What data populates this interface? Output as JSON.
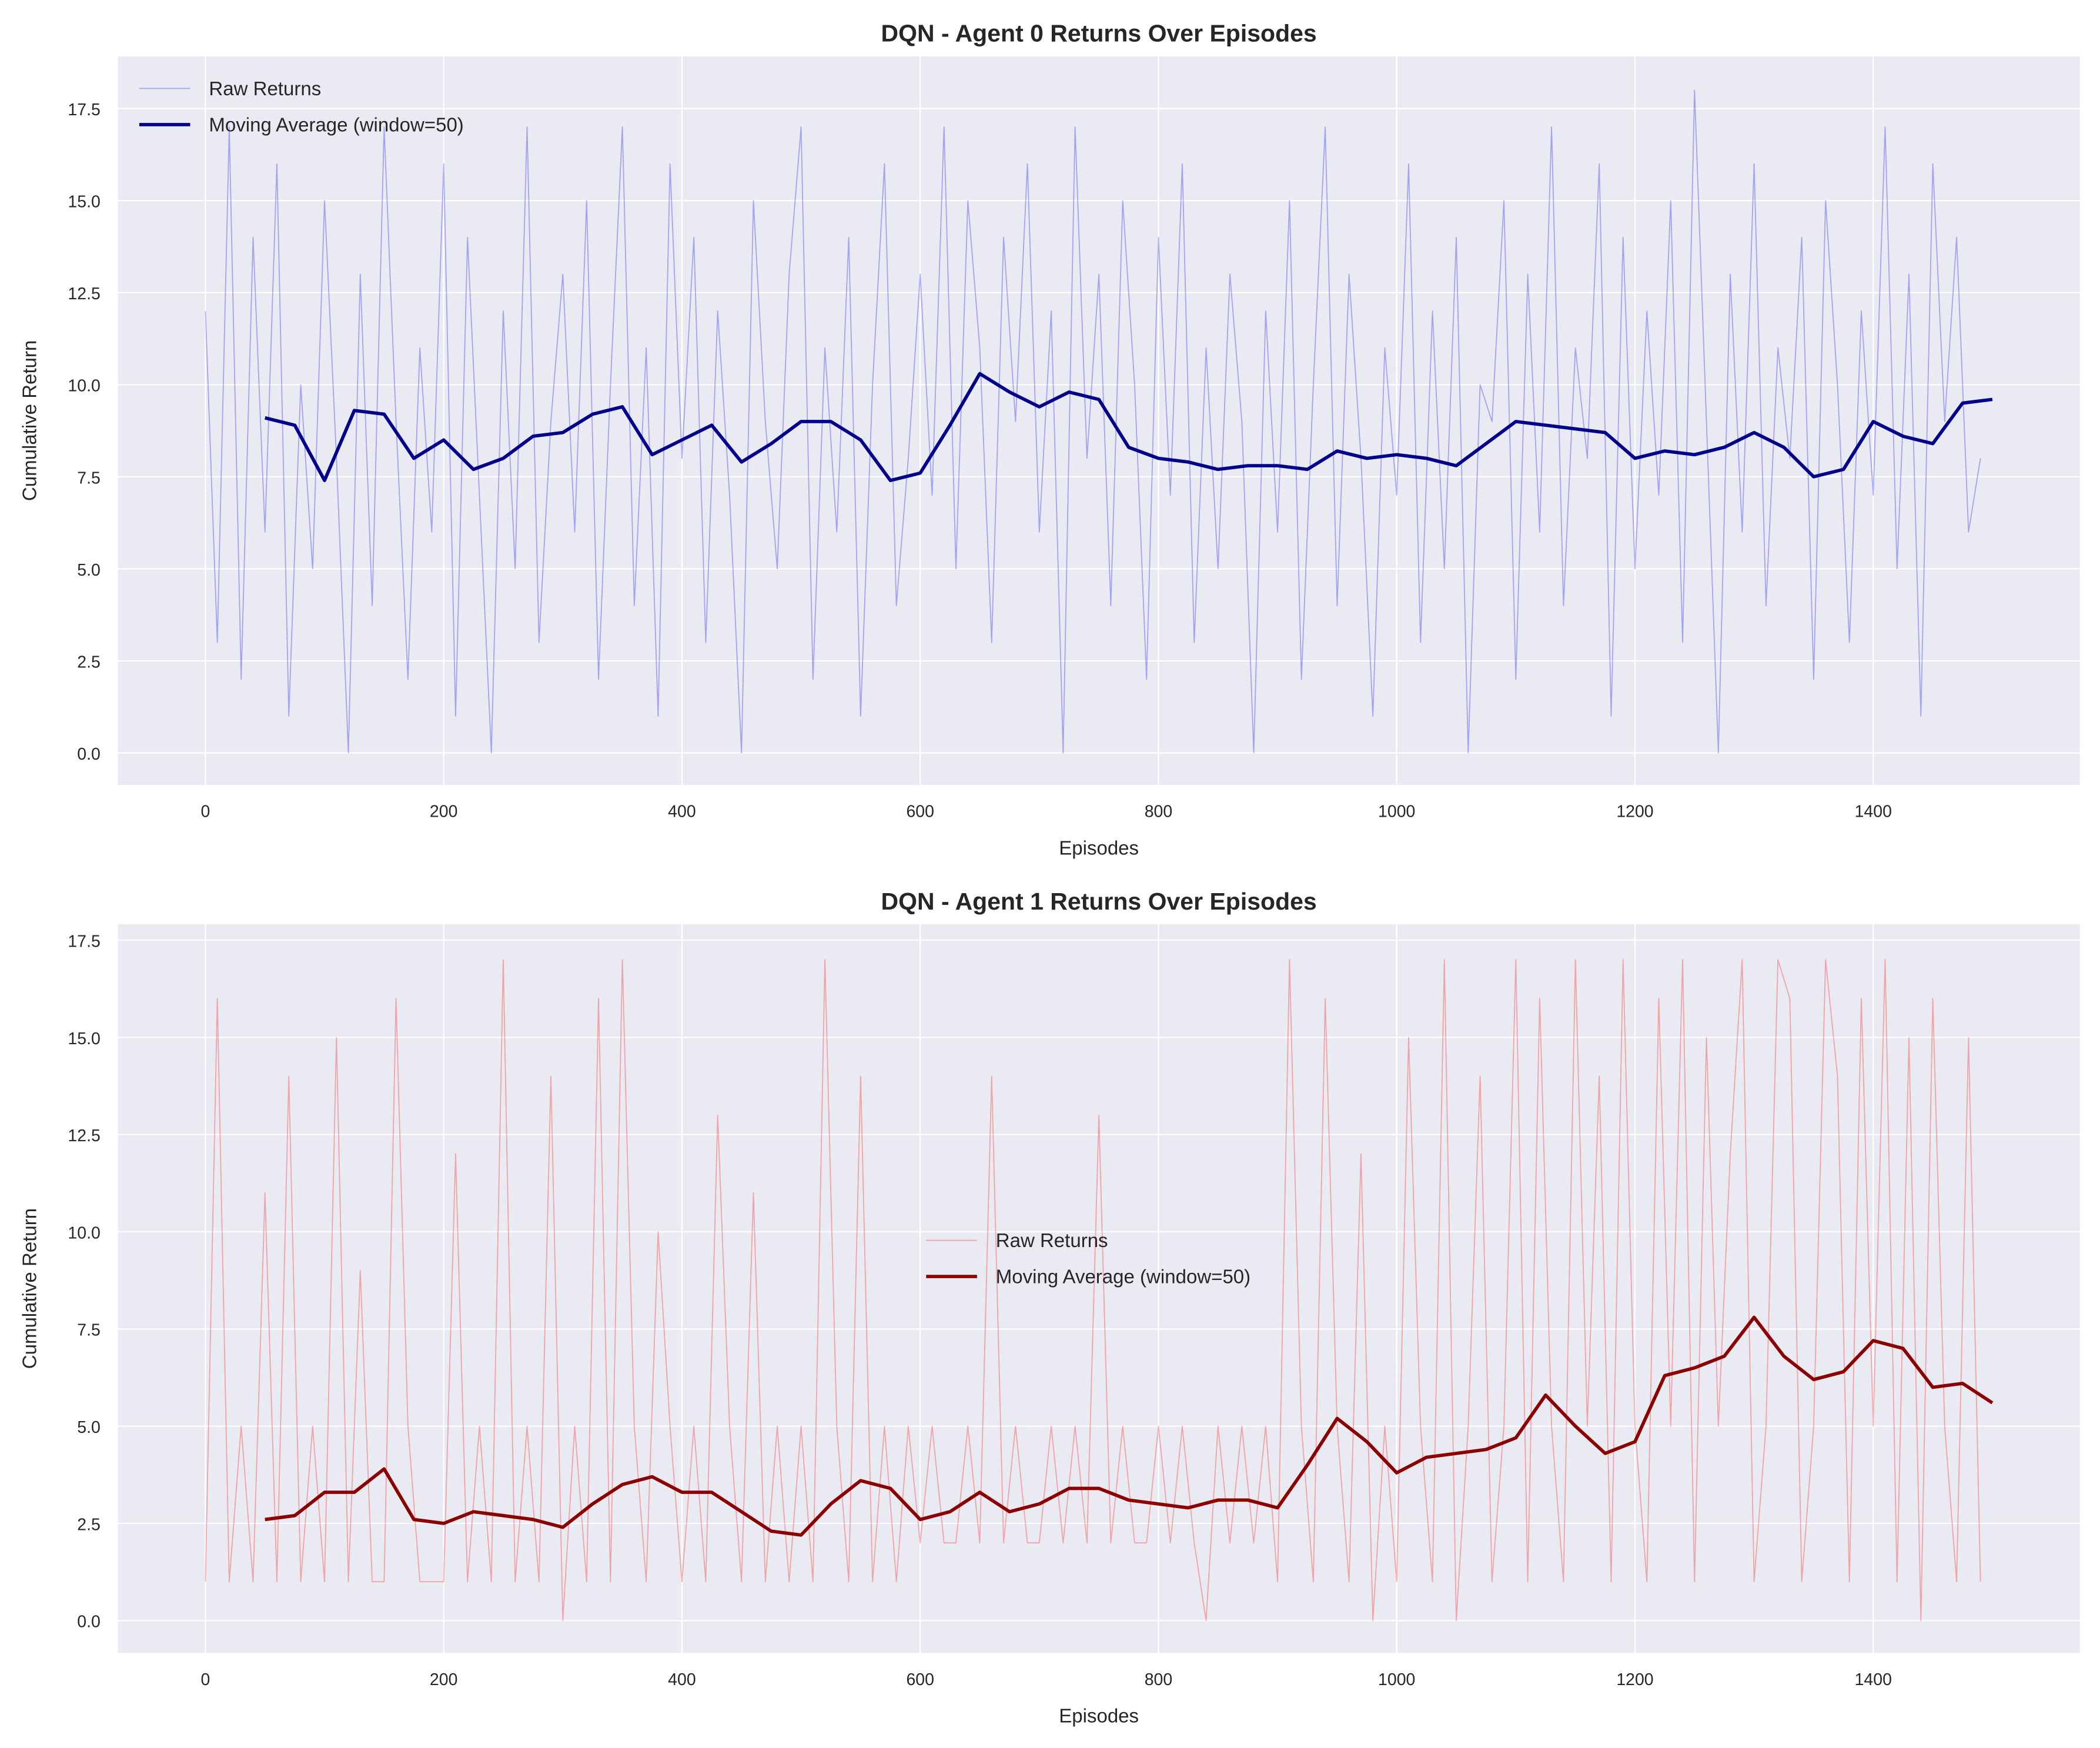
{
  "chart_data": [
    {
      "type": "line",
      "title": "DQN - Agent 0 Returns Over Episodes",
      "xlabel": "Episodes",
      "ylabel": "Cumulative Return",
      "xlim": [
        -73.5,
        1573.5
      ],
      "ylim": [
        -0.87,
        18.92
      ],
      "xticks": [
        0,
        200,
        400,
        600,
        800,
        1000,
        1200,
        1400
      ],
      "yticks": [
        {
          "value": 0,
          "label": "0.0"
        },
        {
          "value": 2.5,
          "label": "2.5"
        },
        {
          "value": 5,
          "label": "5.0"
        },
        {
          "value": 7.5,
          "label": "7.5"
        },
        {
          "value": 10,
          "label": "10.0"
        },
        {
          "value": 12.5,
          "label": "12.5"
        },
        {
          "value": 15,
          "label": "15.0"
        },
        {
          "value": 17.5,
          "label": "17.5"
        }
      ],
      "grid": true,
      "legend": "upper-left",
      "series": [
        {
          "name": "Raw Returns",
          "color": "#0000ff",
          "opacity": 0.3,
          "width": 0.8,
          "x": [
            0,
            10,
            20,
            30,
            40,
            50,
            60,
            70,
            80,
            90,
            100,
            110,
            120,
            130,
            140,
            150,
            160,
            170,
            180,
            190,
            200,
            210,
            220,
            230,
            240,
            250,
            260,
            270,
            280,
            290,
            300,
            310,
            320,
            330,
            340,
            350,
            360,
            370,
            380,
            390,
            400,
            410,
            420,
            430,
            440,
            450,
            460,
            470,
            480,
            490,
            500,
            510,
            520,
            530,
            540,
            550,
            560,
            570,
            580,
            590,
            600,
            610,
            620,
            630,
            640,
            650,
            660,
            670,
            680,
            690,
            700,
            710,
            720,
            730,
            740,
            750,
            760,
            770,
            780,
            790,
            800,
            810,
            820,
            830,
            840,
            850,
            860,
            870,
            880,
            890,
            900,
            910,
            920,
            930,
            940,
            950,
            960,
            970,
            980,
            990,
            1000,
            1010,
            1020,
            1030,
            1040,
            1050,
            1060,
            1070,
            1080,
            1090,
            1100,
            1110,
            1120,
            1130,
            1140,
            1150,
            1160,
            1170,
            1180,
            1190,
            1200,
            1210,
            1220,
            1230,
            1240,
            1250,
            1260,
            1270,
            1280,
            1290,
            1300,
            1310,
            1320,
            1330,
            1340,
            1350,
            1360,
            1370,
            1380,
            1390,
            1400,
            1410,
            1420,
            1430,
            1440,
            1450,
            1460,
            1470,
            1480,
            1490
          ],
          "values": [
            12,
            3,
            17,
            2,
            14,
            6,
            16,
            1,
            10,
            5,
            15,
            8,
            0,
            13,
            4,
            17,
            9,
            2,
            11,
            6,
            16,
            1,
            14,
            7,
            0,
            12,
            5,
            17,
            3,
            9,
            13,
            6,
            15,
            2,
            10,
            17,
            4,
            11,
            1,
            16,
            8,
            14,
            3,
            12,
            7,
            0,
            15,
            9,
            5,
            13,
            17,
            2,
            11,
            6,
            14,
            1,
            10,
            16,
            4,
            8,
            13,
            7,
            17,
            5,
            15,
            11,
            3,
            14,
            9,
            16,
            6,
            12,
            0,
            17,
            8,
            13,
            4,
            15,
            10,
            2,
            14,
            7,
            16,
            3,
            11,
            5,
            13,
            9,
            0,
            12,
            6,
            15,
            2,
            10,
            17,
            4,
            13,
            8,
            1,
            11,
            7,
            16,
            3,
            12,
            5,
            14,
            0,
            10,
            9,
            15,
            2,
            13,
            6,
            17,
            4,
            11,
            8,
            16,
            1,
            14,
            5,
            12,
            7,
            15,
            3,
            18,
            9,
            0,
            13,
            6,
            16,
            4,
            11,
            8,
            14,
            2,
            15,
            10,
            3,
            12,
            7,
            17,
            5,
            13,
            1,
            16,
            9,
            14,
            6,
            8
          ]
        },
        {
          "name": "Moving Average (window=50)",
          "color": "#00008b",
          "opacity": 1,
          "width": 2.5,
          "x": [
            50,
            75,
            100,
            125,
            150,
            175,
            200,
            225,
            250,
            275,
            300,
            325,
            350,
            375,
            400,
            425,
            450,
            475,
            500,
            525,
            550,
            575,
            600,
            625,
            650,
            675,
            700,
            725,
            750,
            775,
            800,
            825,
            850,
            875,
            900,
            925,
            950,
            975,
            1000,
            1025,
            1050,
            1075,
            1100,
            1125,
            1150,
            1175,
            1200,
            1225,
            1250,
            1275,
            1300,
            1325,
            1350,
            1375,
            1400,
            1425,
            1450,
            1475,
            1500
          ],
          "values": [
            9.1,
            8.9,
            7.4,
            9.3,
            9.2,
            8.0,
            8.5,
            7.7,
            8.0,
            8.6,
            8.7,
            9.2,
            9.4,
            8.1,
            8.5,
            8.9,
            7.9,
            8.4,
            9.0,
            9.0,
            8.5,
            7.4,
            7.6,
            8.9,
            10.3,
            9.8,
            9.4,
            9.8,
            9.6,
            8.3,
            8.0,
            7.9,
            7.7,
            7.8,
            7.8,
            7.7,
            8.2,
            8.0,
            8.1,
            8.0,
            7.8,
            8.4,
            9.0,
            8.9,
            8.8,
            8.7,
            8.0,
            8.2,
            8.1,
            8.3,
            8.7,
            8.3,
            7.5,
            7.7,
            9.0,
            8.6,
            8.4,
            9.5,
            9.6
          ]
        }
      ]
    },
    {
      "type": "line",
      "title": "DQN - Agent 1 Returns Over Episodes",
      "xlabel": "Episodes",
      "ylabel": "Cumulative Return",
      "xlim": [
        -73.5,
        1573.5
      ],
      "ylim": [
        -0.83,
        17.91
      ],
      "xticks": [
        0,
        200,
        400,
        600,
        800,
        1000,
        1200,
        1400
      ],
      "yticks": [
        {
          "value": 0,
          "label": "0.0"
        },
        {
          "value": 2.5,
          "label": "2.5"
        },
        {
          "value": 5,
          "label": "5.0"
        },
        {
          "value": 7.5,
          "label": "7.5"
        },
        {
          "value": 10,
          "label": "10.0"
        },
        {
          "value": 12.5,
          "label": "12.5"
        },
        {
          "value": 15,
          "label": "15.0"
        },
        {
          "value": 17.5,
          "label": "17.5"
        }
      ],
      "grid": true,
      "legend": "center",
      "series": [
        {
          "name": "Raw Returns",
          "color": "#ff0000",
          "opacity": 0.3,
          "width": 0.8,
          "x": [
            0,
            10,
            20,
            30,
            40,
            50,
            60,
            70,
            80,
            90,
            100,
            110,
            120,
            130,
            140,
            150,
            160,
            170,
            180,
            190,
            200,
            210,
            220,
            230,
            240,
            250,
            260,
            270,
            280,
            290,
            300,
            310,
            320,
            330,
            340,
            350,
            360,
            370,
            380,
            390,
            400,
            410,
            420,
            430,
            440,
            450,
            460,
            470,
            480,
            490,
            500,
            510,
            520,
            530,
            540,
            550,
            560,
            570,
            580,
            590,
            600,
            610,
            620,
            630,
            640,
            650,
            660,
            670,
            680,
            690,
            700,
            710,
            720,
            730,
            740,
            750,
            760,
            770,
            780,
            790,
            800,
            810,
            820,
            830,
            840,
            850,
            860,
            870,
            880,
            890,
            900,
            910,
            920,
            930,
            940,
            950,
            960,
            970,
            980,
            990,
            1000,
            1010,
            1020,
            1030,
            1040,
            1050,
            1060,
            1070,
            1080,
            1090,
            1100,
            1110,
            1120,
            1130,
            1140,
            1150,
            1160,
            1170,
            1180,
            1190,
            1200,
            1210,
            1220,
            1230,
            1240,
            1250,
            1260,
            1270,
            1280,
            1290,
            1300,
            1310,
            1320,
            1330,
            1340,
            1350,
            1360,
            1370,
            1380,
            1390,
            1400,
            1410,
            1420,
            1430,
            1440,
            1450,
            1460,
            1470,
            1480,
            1490
          ],
          "values": [
            1,
            16,
            1,
            5,
            1,
            11,
            1,
            14,
            1,
            5,
            1,
            15,
            1,
            9,
            1,
            1,
            16,
            5,
            1,
            1,
            1,
            12,
            1,
            5,
            1,
            17,
            1,
            5,
            1,
            14,
            0,
            5,
            1,
            16,
            1,
            17,
            5,
            1,
            10,
            5,
            1,
            5,
            1,
            13,
            5,
            1,
            11,
            1,
            5,
            1,
            5,
            1,
            17,
            5,
            1,
            14,
            1,
            5,
            1,
            5,
            2,
            5,
            2,
            2,
            5,
            2,
            14,
            2,
            5,
            2,
            2,
            5,
            2,
            5,
            2,
            13,
            2,
            5,
            2,
            2,
            5,
            2,
            5,
            2,
            0,
            5,
            2,
            5,
            2,
            5,
            1,
            17,
            5,
            1,
            16,
            5,
            1,
            12,
            0,
            5,
            1,
            15,
            5,
            1,
            17,
            0,
            5,
            14,
            1,
            5,
            17,
            1,
            16,
            5,
            1,
            17,
            5,
            14,
            1,
            17,
            5,
            1,
            16,
            5,
            17,
            1,
            15,
            5,
            12,
            17,
            1,
            5,
            17,
            16,
            1,
            5,
            17,
            14,
            1,
            16,
            5,
            17,
            1,
            15,
            0,
            16,
            5,
            1,
            15,
            1
          ]
        },
        {
          "name": "Moving Average (window=50)",
          "color": "#8b0000",
          "opacity": 1,
          "width": 2.5,
          "x": [
            50,
            75,
            100,
            125,
            150,
            175,
            200,
            225,
            250,
            275,
            300,
            325,
            350,
            375,
            400,
            425,
            450,
            475,
            500,
            525,
            550,
            575,
            600,
            625,
            650,
            675,
            700,
            725,
            750,
            775,
            800,
            825,
            850,
            875,
            900,
            925,
            950,
            975,
            1000,
            1025,
            1050,
            1075,
            1100,
            1125,
            1150,
            1175,
            1200,
            1225,
            1250,
            1275,
            1300,
            1325,
            1350,
            1375,
            1400,
            1425,
            1450,
            1475,
            1500
          ],
          "values": [
            2.6,
            2.7,
            3.3,
            3.3,
            3.9,
            2.6,
            2.5,
            2.8,
            2.7,
            2.6,
            2.4,
            3.0,
            3.5,
            3.7,
            3.3,
            3.3,
            2.8,
            2.3,
            2.2,
            3.0,
            3.6,
            3.4,
            2.6,
            2.8,
            3.3,
            2.8,
            3.0,
            3.4,
            3.4,
            3.1,
            3.0,
            2.9,
            3.1,
            3.1,
            2.9,
            4.0,
            5.2,
            4.6,
            3.8,
            4.2,
            4.3,
            4.4,
            4.7,
            5.8,
            5.0,
            4.3,
            4.6,
            6.3,
            6.5,
            6.8,
            7.8,
            6.8,
            6.2,
            6.4,
            7.2,
            7.0,
            6.0,
            6.1,
            5.6
          ]
        }
      ]
    }
  ]
}
